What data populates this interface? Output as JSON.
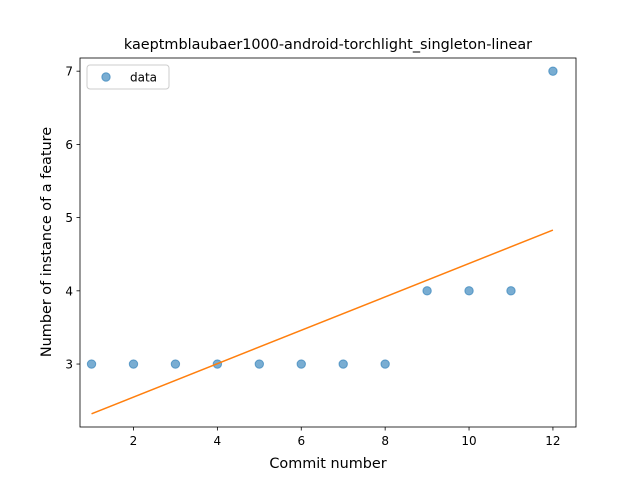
{
  "chart_data": {
    "type": "scatter",
    "title": "kaeptmblaubaer1000-android-torchlight_singleton-linear",
    "xlabel": "Commit number",
    "ylabel": "Number of instance of a feature",
    "xlim": [
      0.725,
      12.55
    ],
    "ylim": [
      2.14,
      7.18
    ],
    "xticks": [
      2,
      4,
      6,
      8,
      10,
      12
    ],
    "yticks": [
      3,
      4,
      5,
      6,
      7
    ],
    "grid": false,
    "legend_position": "top-left",
    "series": [
      {
        "name": "data",
        "kind": "scatter",
        "color": "#1f77b4",
        "x": [
          1,
          2,
          3,
          4,
          5,
          6,
          7,
          8,
          9,
          10,
          11,
          12
        ],
        "y": [
          3,
          3,
          3,
          3,
          3,
          3,
          3,
          3,
          4,
          4,
          4,
          7
        ]
      },
      {
        "kind": "line",
        "color": "#ff7f0e",
        "x": [
          1,
          12
        ],
        "y": [
          2.32,
          4.83
        ]
      }
    ]
  }
}
